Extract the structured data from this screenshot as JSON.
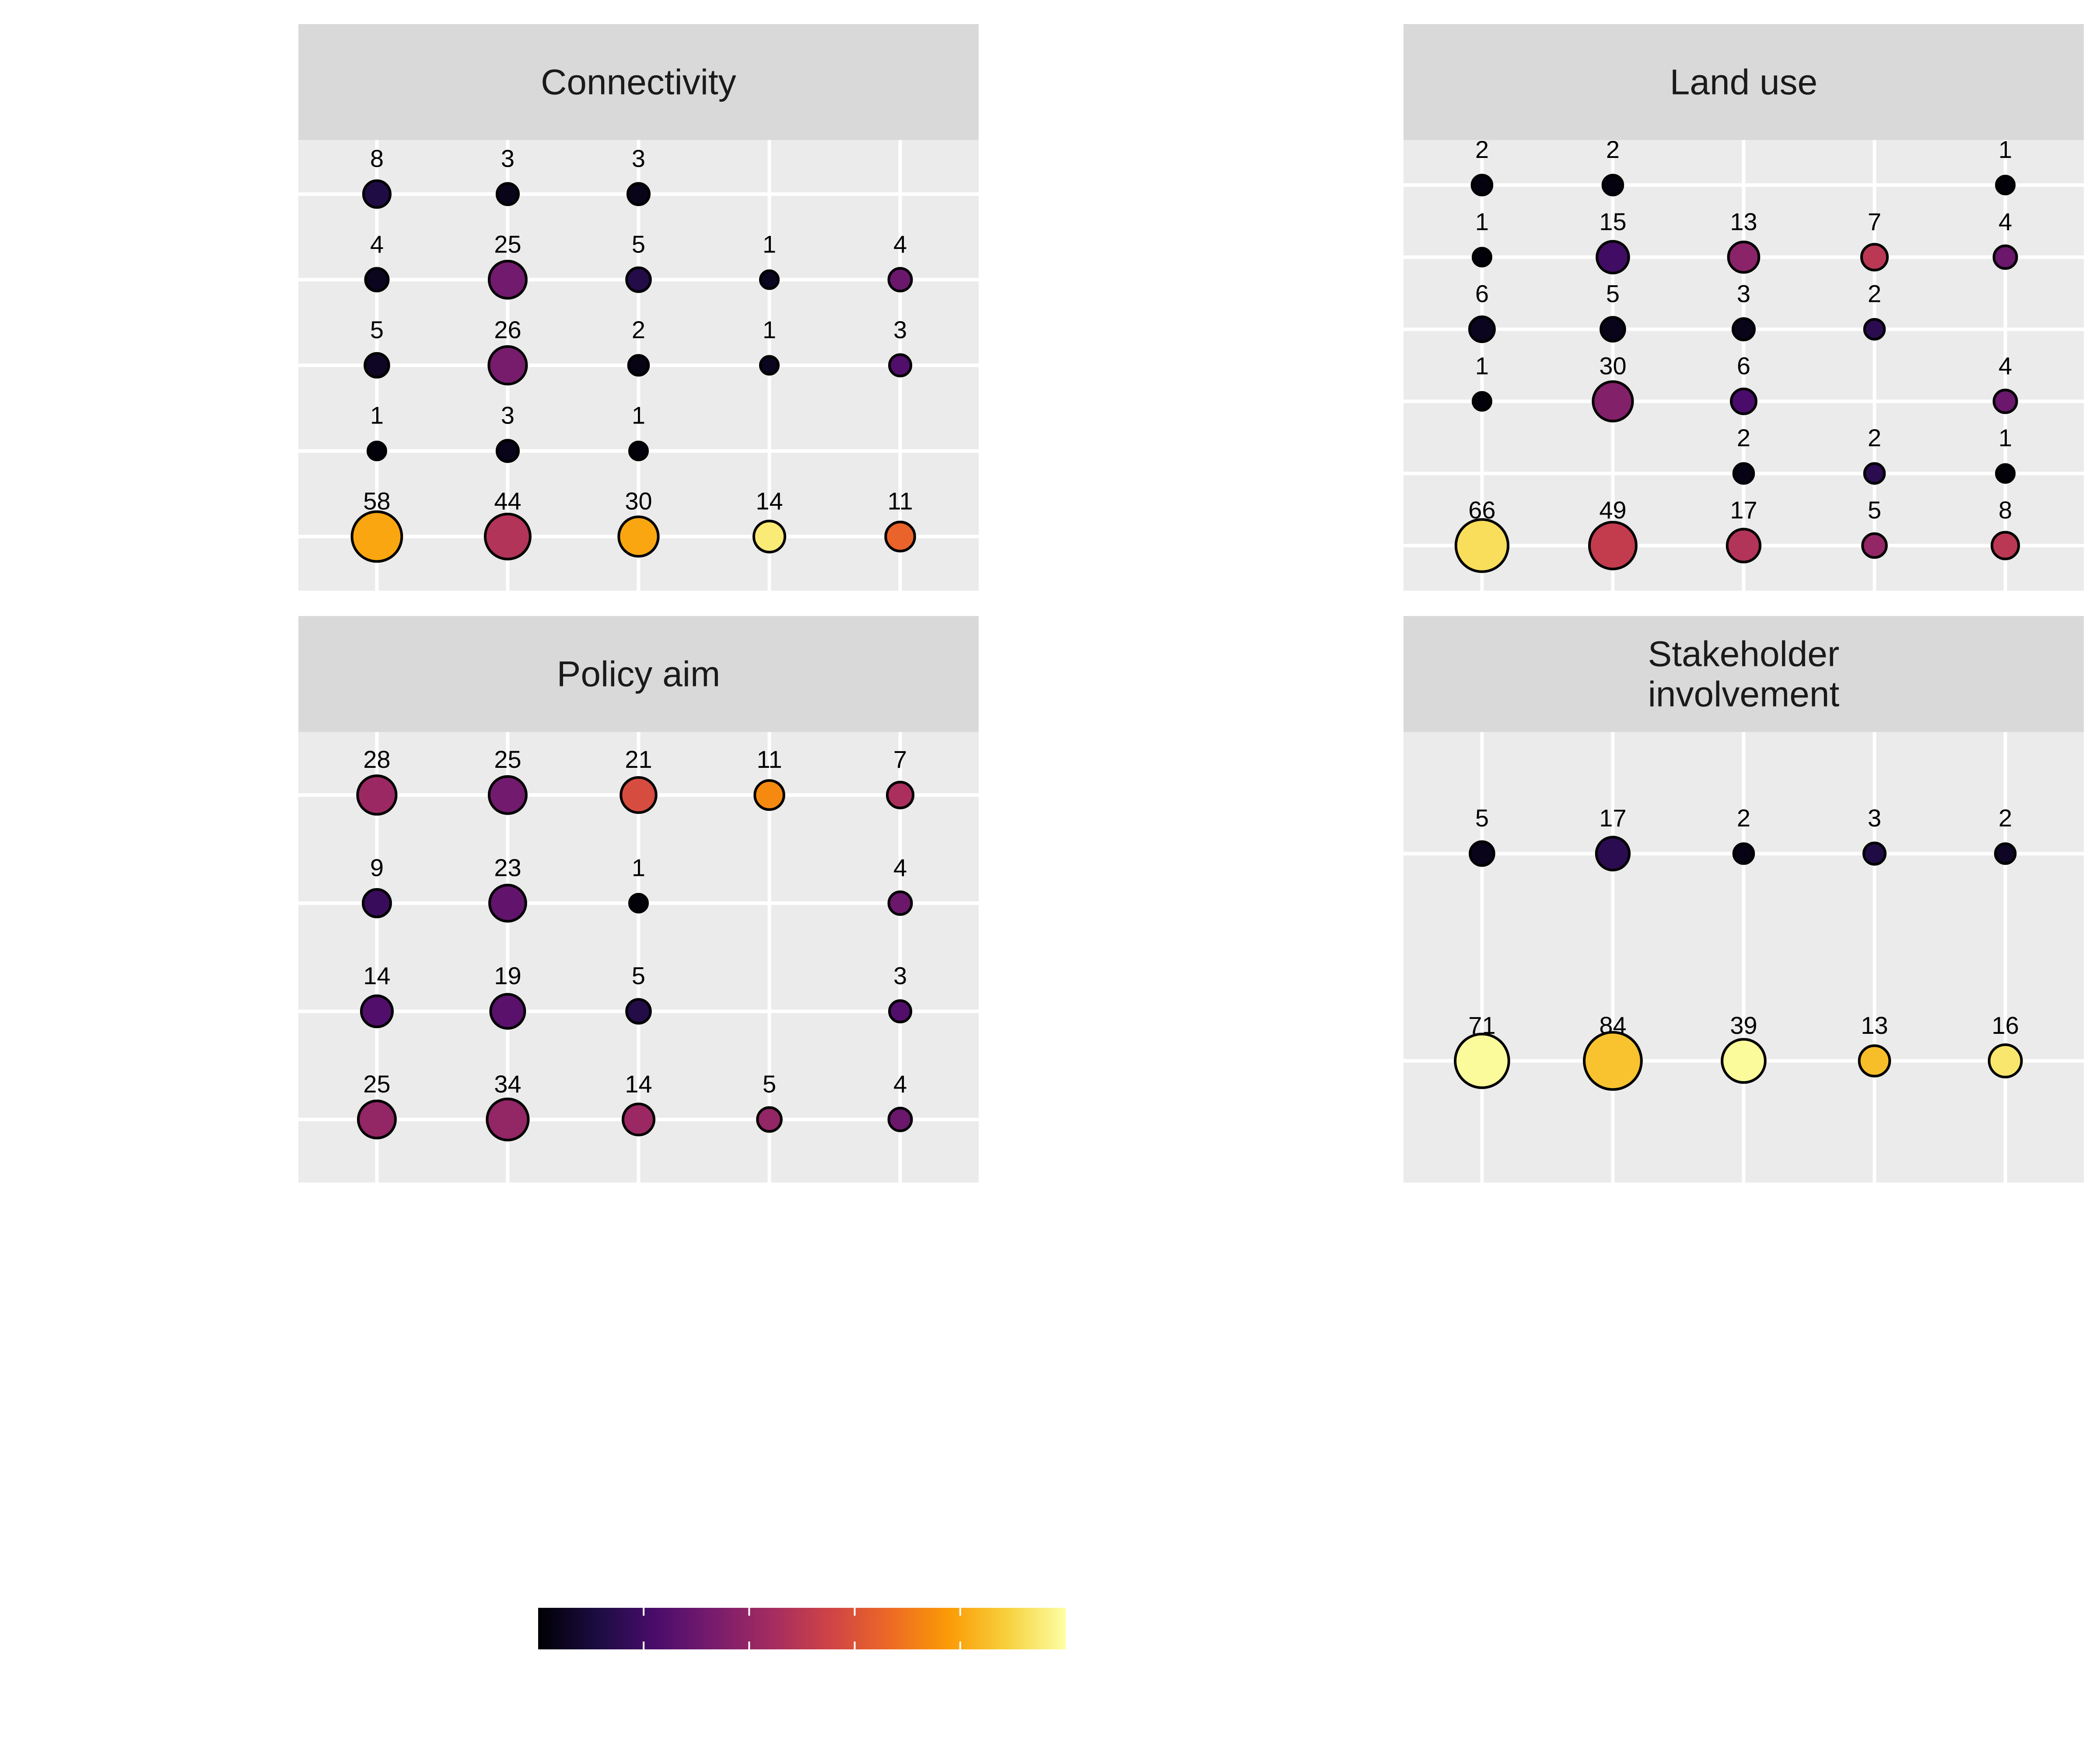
{
  "chart_data": [
    {
      "type": "scatter",
      "title": "Connectivity",
      "columns": 5,
      "rows": 5,
      "points": [
        {
          "col": 0,
          "row": 0,
          "n": 8,
          "color": 0.12
        },
        {
          "col": 1,
          "row": 0,
          "n": 3,
          "color": 0.04
        },
        {
          "col": 2,
          "row": 0,
          "n": 3,
          "color": 0.04
        },
        {
          "col": 0,
          "row": 1,
          "n": 4,
          "color": 0.05
        },
        {
          "col": 1,
          "row": 1,
          "n": 25,
          "color": 0.32
        },
        {
          "col": 2,
          "row": 1,
          "n": 5,
          "color": 0.13
        },
        {
          "col": 3,
          "row": 1,
          "n": 1,
          "color": 0.05
        },
        {
          "col": 4,
          "row": 1,
          "n": 4,
          "color": 0.3
        },
        {
          "col": 0,
          "row": 2,
          "n": 5,
          "color": 0.06
        },
        {
          "col": 1,
          "row": 2,
          "n": 26,
          "color": 0.33
        },
        {
          "col": 2,
          "row": 2,
          "n": 2,
          "color": 0.03
        },
        {
          "col": 3,
          "row": 2,
          "n": 1,
          "color": 0.05
        },
        {
          "col": 4,
          "row": 2,
          "n": 3,
          "color": 0.24
        },
        {
          "col": 0,
          "row": 3,
          "n": 1,
          "color": 0.01
        },
        {
          "col": 1,
          "row": 3,
          "n": 3,
          "color": 0.04
        },
        {
          "col": 2,
          "row": 3,
          "n": 1,
          "color": 0.01
        },
        {
          "col": 0,
          "row": 4,
          "n": 58,
          "color": 0.8
        },
        {
          "col": 1,
          "row": 4,
          "n": 44,
          "color": 0.48
        },
        {
          "col": 2,
          "row": 4,
          "n": 30,
          "color": 0.8
        },
        {
          "col": 3,
          "row": 4,
          "n": 14,
          "color": 0.95
        },
        {
          "col": 4,
          "row": 4,
          "n": 11,
          "color": 0.65
        }
      ]
    },
    {
      "type": "scatter",
      "title": "Land use",
      "columns": 5,
      "rows": 6,
      "points": [
        {
          "col": 0,
          "row": 0,
          "n": 2,
          "color": 0.02
        },
        {
          "col": 1,
          "row": 0,
          "n": 2,
          "color": 0.02
        },
        {
          "col": 4,
          "row": 0,
          "n": 1,
          "color": 0.01
        },
        {
          "col": 0,
          "row": 1,
          "n": 1,
          "color": 0.01
        },
        {
          "col": 1,
          "row": 1,
          "n": 15,
          "color": 0.2
        },
        {
          "col": 2,
          "row": 1,
          "n": 13,
          "color": 0.38
        },
        {
          "col": 3,
          "row": 1,
          "n": 7,
          "color": 0.5
        },
        {
          "col": 4,
          "row": 1,
          "n": 4,
          "color": 0.3
        },
        {
          "col": 0,
          "row": 2,
          "n": 6,
          "color": 0.05
        },
        {
          "col": 1,
          "row": 2,
          "n": 5,
          "color": 0.04
        },
        {
          "col": 2,
          "row": 2,
          "n": 3,
          "color": 0.04
        },
        {
          "col": 3,
          "row": 2,
          "n": 2,
          "color": 0.15
        },
        {
          "col": 0,
          "row": 3,
          "n": 1,
          "color": 0.01
        },
        {
          "col": 1,
          "row": 3,
          "n": 30,
          "color": 0.36
        },
        {
          "col": 2,
          "row": 3,
          "n": 6,
          "color": 0.22
        },
        {
          "col": 4,
          "row": 3,
          "n": 4,
          "color": 0.3
        },
        {
          "col": 2,
          "row": 4,
          "n": 2,
          "color": 0.03
        },
        {
          "col": 3,
          "row": 4,
          "n": 2,
          "color": 0.15
        },
        {
          "col": 4,
          "row": 4,
          "n": 1,
          "color": 0.01
        },
        {
          "col": 0,
          "row": 5,
          "n": 66,
          "color": 0.92
        },
        {
          "col": 1,
          "row": 5,
          "n": 49,
          "color": 0.52
        },
        {
          "col": 2,
          "row": 5,
          "n": 17,
          "color": 0.48
        },
        {
          "col": 3,
          "row": 5,
          "n": 5,
          "color": 0.4
        },
        {
          "col": 4,
          "row": 5,
          "n": 8,
          "color": 0.5
        }
      ]
    },
    {
      "type": "scatter",
      "title": "Policy aim",
      "columns": 5,
      "rows": 4,
      "points": [
        {
          "col": 0,
          "row": 0,
          "n": 28,
          "color": 0.42
        },
        {
          "col": 1,
          "row": 0,
          "n": 25,
          "color": 0.32
        },
        {
          "col": 2,
          "row": 0,
          "n": 21,
          "color": 0.58
        },
        {
          "col": 3,
          "row": 0,
          "n": 11,
          "color": 0.74
        },
        {
          "col": 4,
          "row": 0,
          "n": 7,
          "color": 0.46
        },
        {
          "col": 0,
          "row": 1,
          "n": 9,
          "color": 0.18
        },
        {
          "col": 1,
          "row": 1,
          "n": 23,
          "color": 0.28
        },
        {
          "col": 2,
          "row": 1,
          "n": 1,
          "color": 0.01
        },
        {
          "col": 4,
          "row": 1,
          "n": 4,
          "color": 0.3
        },
        {
          "col": 0,
          "row": 2,
          "n": 14,
          "color": 0.24
        },
        {
          "col": 1,
          "row": 2,
          "n": 19,
          "color": 0.26
        },
        {
          "col": 2,
          "row": 2,
          "n": 5,
          "color": 0.13
        },
        {
          "col": 4,
          "row": 2,
          "n": 3,
          "color": 0.24
        },
        {
          "col": 0,
          "row": 3,
          "n": 25,
          "color": 0.4
        },
        {
          "col": 1,
          "row": 3,
          "n": 34,
          "color": 0.4
        },
        {
          "col": 2,
          "row": 3,
          "n": 14,
          "color": 0.42
        },
        {
          "col": 3,
          "row": 3,
          "n": 5,
          "color": 0.4
        },
        {
          "col": 4,
          "row": 3,
          "n": 4,
          "color": 0.3
        }
      ]
    },
    {
      "type": "scatter",
      "title": "Stakeholder\ninvolvement",
      "columns": 5,
      "rows": 2,
      "points": [
        {
          "col": 0,
          "row": 0,
          "n": 5,
          "color": 0.04
        },
        {
          "col": 1,
          "row": 0,
          "n": 17,
          "color": 0.15
        },
        {
          "col": 2,
          "row": 0,
          "n": 2,
          "color": 0.03
        },
        {
          "col": 3,
          "row": 0,
          "n": 3,
          "color": 0.12
        },
        {
          "col": 4,
          "row": 0,
          "n": 2,
          "color": 0.06
        },
        {
          "col": 0,
          "row": 1,
          "n": 71,
          "color": 0.99
        },
        {
          "col": 1,
          "row": 1,
          "n": 84,
          "color": 0.86
        },
        {
          "col": 2,
          "row": 1,
          "n": 39,
          "color": 0.99
        },
        {
          "col": 3,
          "row": 1,
          "n": 13,
          "color": 0.85
        },
        {
          "col": 4,
          "row": 1,
          "n": 16,
          "color": 0.94
        }
      ]
    }
  ],
  "legend": {
    "type": "colorbar",
    "palette": [
      "#000004",
      "#1b0c41",
      "#4a0c6b",
      "#781c6d",
      "#a52c60",
      "#cf4446",
      "#ed6925",
      "#fb9b06",
      "#f7d13d",
      "#fcffa4"
    ],
    "ticks": 6
  },
  "colors": {
    "panel_bg": "#ebebeb",
    "strip_bg": "#d9d9d9",
    "grid": "#ffffff",
    "point_stroke": "#000000"
  }
}
